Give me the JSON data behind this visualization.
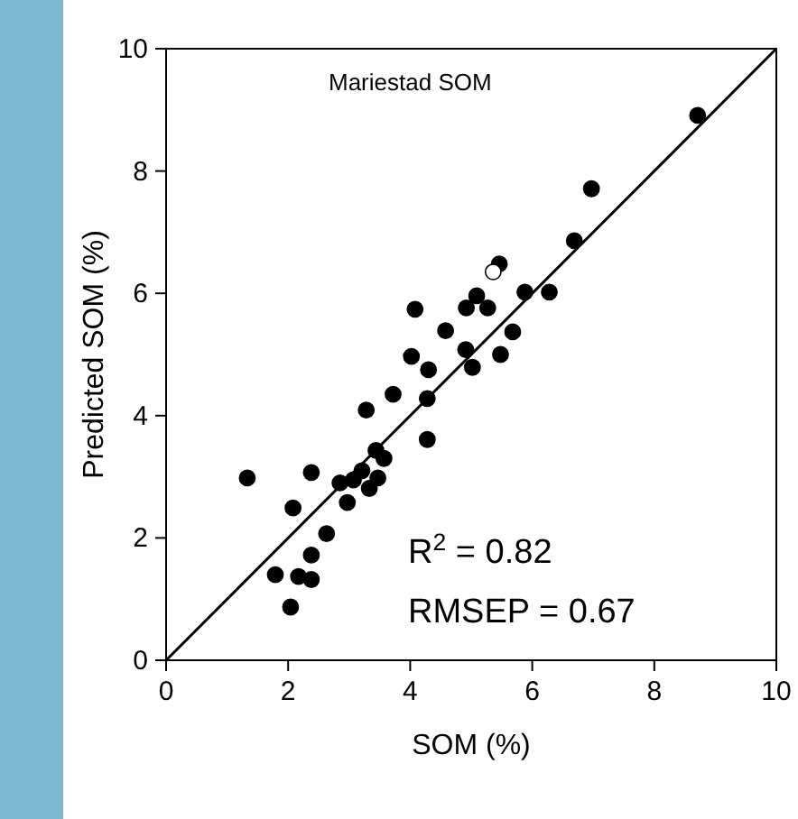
{
  "chart_data": {
    "type": "scatter",
    "xlabel": "SOM (%)",
    "ylabel": "Predicted SOM (%)",
    "xlim": [
      0,
      10
    ],
    "ylim": [
      0,
      10
    ],
    "xticks": [
      0,
      2,
      4,
      6,
      8,
      10
    ],
    "yticks": [
      0,
      2,
      4,
      6,
      8,
      10
    ],
    "grid": false,
    "marker": "circle",
    "annotations": [
      "Mariestad SOM",
      "R$^{2}$ = 0.82",
      "RMSEP = 0.67"
    ],
    "series": [
      {
        "color": "#000000",
        "x": [
          1.33,
          2.04,
          4.02,
          4.28,
          8.71,
          6.97,
          5.46,
          6.69,
          5.88,
          6.28,
          4.08,
          4.92,
          5.09,
          5.27,
          4.58,
          5.68,
          4.91,
          5.48,
          4.3,
          5.02,
          4.28,
          3.72,
          3.28,
          3.44,
          3.57,
          3.47,
          2.38,
          2.85,
          3.07,
          3.21,
          3.33,
          2.97,
          2.08,
          2.63,
          2.38,
          1.79,
          2.17,
          2.38
        ],
        "values": [
          2.98,
          0.87,
          4.97,
          3.61,
          8.91,
          7.71,
          6.48,
          6.86,
          6.02,
          6.02,
          5.74,
          5.76,
          5.96,
          5.76,
          5.39,
          5.37,
          5.08,
          5.0,
          4.75,
          4.79,
          4.28,
          4.35,
          4.09,
          3.43,
          3.3,
          2.98,
          3.07,
          2.9,
          2.95,
          3.1,
          2.81,
          2.58,
          2.49,
          2.07,
          1.72,
          1.4,
          1.37,
          1.32
        ]
      },
      {
        "color": "#ffffff",
        "x": [
          5.36
        ],
        "values": [
          6.35
        ]
      },
      {
        "type": "line",
        "marker": "none",
        "color": "#000000",
        "x": [
          0,
          10
        ],
        "values": [
          0,
          10
        ]
      }
    ]
  }
}
